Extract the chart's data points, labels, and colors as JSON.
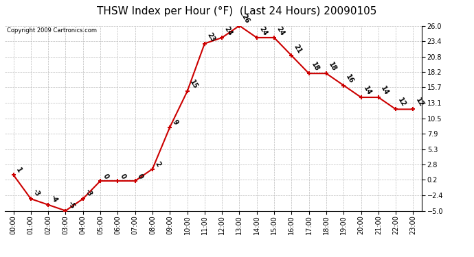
{
  "title": "THSW Index per Hour (°F)  (Last 24 Hours) 20090105",
  "copyright": "Copyright 2009 Cartronics.com",
  "hours": [
    "00:00",
    "01:00",
    "02:00",
    "03:00",
    "04:00",
    "05:00",
    "06:00",
    "07:00",
    "08:00",
    "09:00",
    "10:00",
    "11:00",
    "12:00",
    "13:00",
    "14:00",
    "15:00",
    "16:00",
    "17:00",
    "18:00",
    "19:00",
    "20:00",
    "21:00",
    "22:00",
    "23:00"
  ],
  "values": [
    1,
    -3,
    -4,
    -5,
    -3,
    0,
    0,
    0,
    2,
    9,
    15,
    23,
    24,
    26,
    24,
    24,
    21,
    18,
    18,
    16,
    14,
    14,
    12,
    12
  ],
  "line_color": "#cc0000",
  "marker_color": "#cc0000",
  "bg_color": "#ffffff",
  "grid_color": "#bbbbbb",
  "yticks": [
    26.0,
    23.4,
    20.8,
    18.2,
    15.7,
    13.1,
    10.5,
    7.9,
    5.3,
    2.8,
    0.2,
    -2.4,
    -5.0
  ],
  "ylim": [
    -5.0,
    26.0
  ],
  "title_fontsize": 11,
  "tick_fontsize": 7,
  "copyright_fontsize": 6
}
